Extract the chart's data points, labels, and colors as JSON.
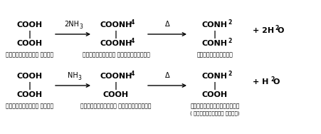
{
  "background_color": "#ffffff",
  "figsize": [
    4.52,
    1.88
  ],
  "dpi": 100,
  "row1": {
    "compound1_lines": [
      "COOH",
      "|",
      "COOH"
    ],
    "compound1_label": "आन्क्सैलिक अम्ल",
    "arrow1_label": "NH",
    "arrow1_sub": "3",
    "compound2_lines": [
      "COONH",
      "4",
      "|",
      "COOH"
    ],
    "compound2_label": "मोनोअमोनियम ऑन्क्सैलेग",
    "arrow2_label": "Δ",
    "compound3_lines": [
      "CONH",
      "2",
      "|",
      "COOH"
    ],
    "compound3_label": "मोनोऑन्क्सैमाइड",
    "compound3_sublabel": "( ऑन्क्सैमिक अम्ल)",
    "product1": "+ H",
    "product1_sub": "2",
    "product1_end": "O"
  },
  "row2": {
    "compound1_lines": [
      "COOH",
      "|",
      "COOH"
    ],
    "compound1_label": "आन्क्सैलिक अम्ल",
    "arrow1_label": "2NH",
    "arrow1_sub": "3",
    "compound2_lines": [
      "COONH",
      "4",
      "|",
      "COONH",
      "4"
    ],
    "compound2_label": "डाइअमोनियम ऑन्क्सैलेग",
    "arrow2_label": "Δ",
    "compound3_lines": [
      "CONH",
      "2",
      "|",
      "CONH",
      "2"
    ],
    "compound3_label": "ऑन्क्सैमाइड",
    "product1": "+ 2H",
    "product1_sub": "2",
    "product1_end": "O"
  }
}
